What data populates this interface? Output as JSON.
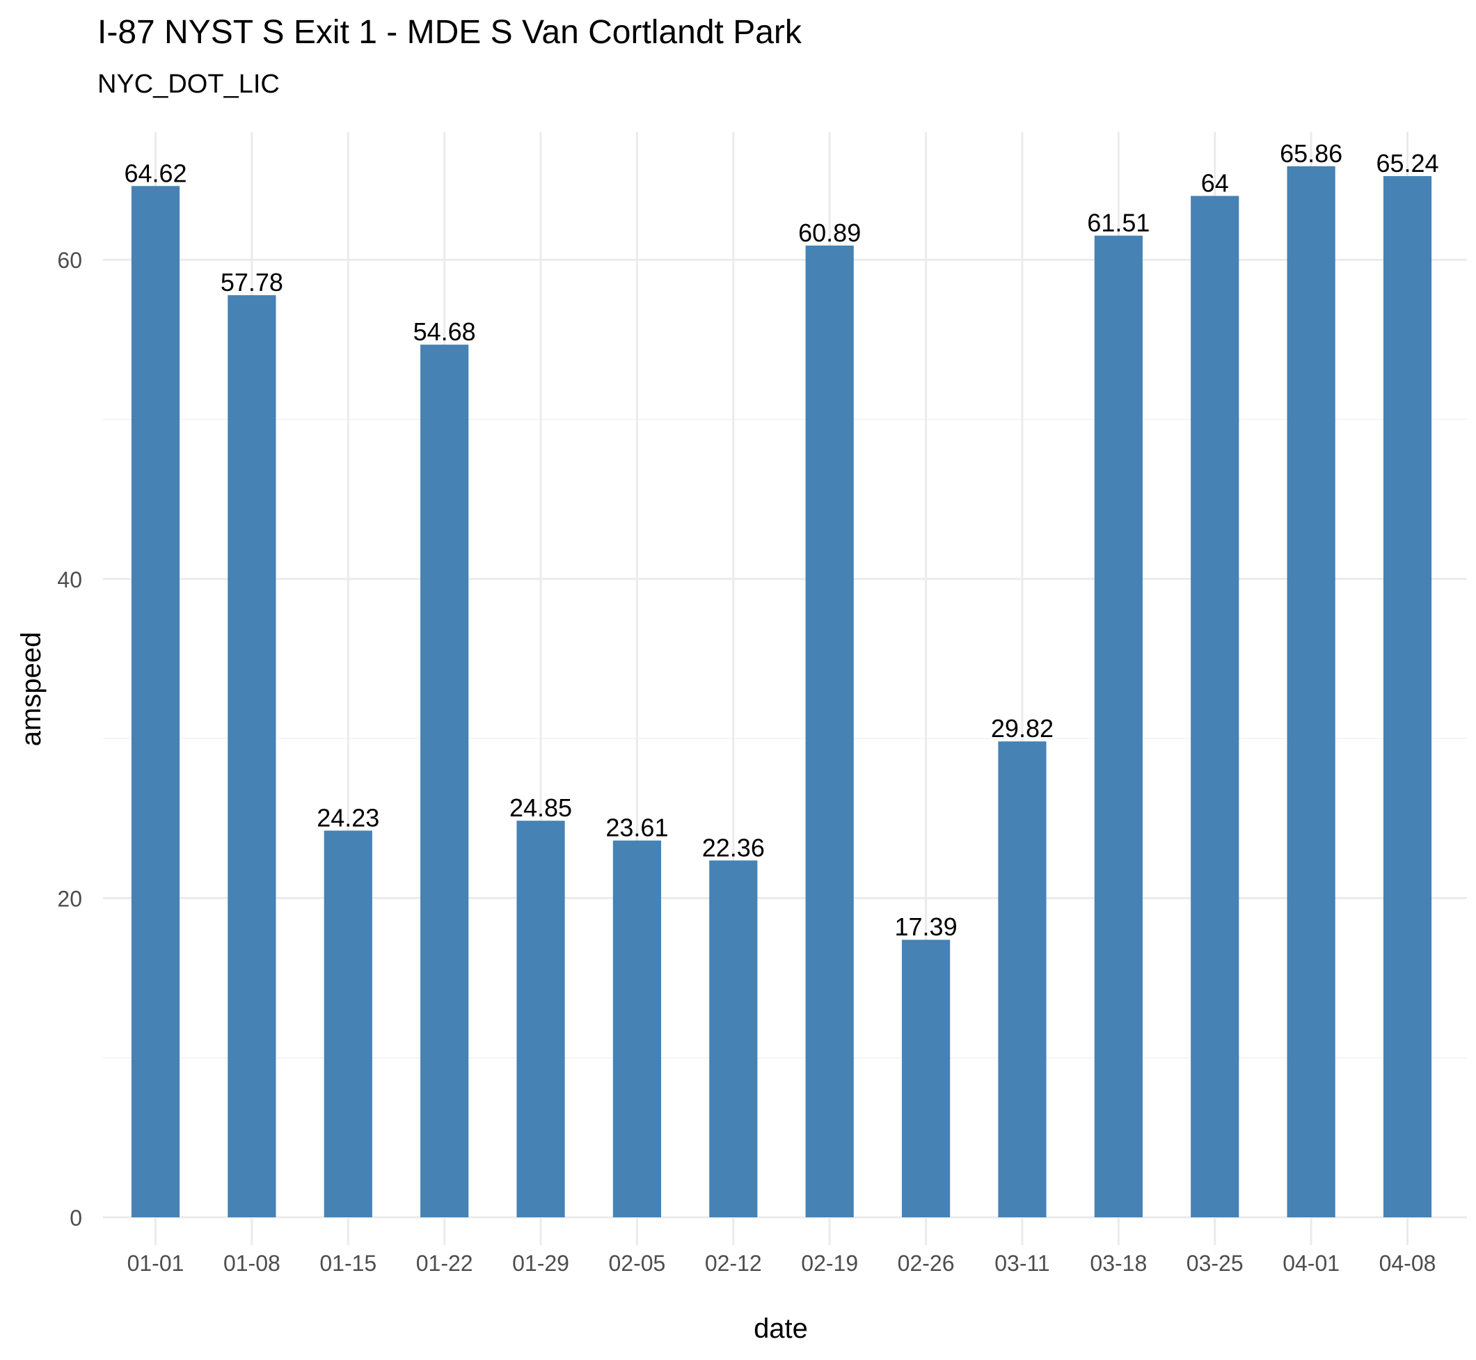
{
  "chart_data": {
    "type": "bar",
    "title": "I-87 NYST S Exit 1 - MDE S Van Cortlandt Park",
    "subtitle": "NYC_DOT_LIC",
    "xlabel": "date",
    "ylabel": "amspeed",
    "ylim": [
      0,
      68
    ],
    "yticks": [
      0,
      20,
      40,
      60
    ],
    "grid": true,
    "categories": [
      "01-01",
      "01-08",
      "01-15",
      "01-22",
      "01-29",
      "02-05",
      "02-12",
      "02-19",
      "02-26",
      "03-11",
      "03-18",
      "03-25",
      "04-01",
      "04-08"
    ],
    "values": [
      64.62,
      57.78,
      24.23,
      54.68,
      24.85,
      23.61,
      22.36,
      60.89,
      17.39,
      29.82,
      61.51,
      64,
      65.86,
      65.24
    ],
    "data_labels": [
      "64.62",
      "57.78",
      "24.23",
      "54.68",
      "24.85",
      "23.61",
      "22.36",
      "60.89",
      "17.39",
      "29.82",
      "61.51",
      "64",
      "65.86",
      "65.24"
    ],
    "colors": {
      "bar": "#4682B4",
      "grid_major": "#EBEBEB",
      "grid_minor": "#F2F2F2",
      "axis_text": "#4D4D4D",
      "text": "#000000"
    }
  }
}
